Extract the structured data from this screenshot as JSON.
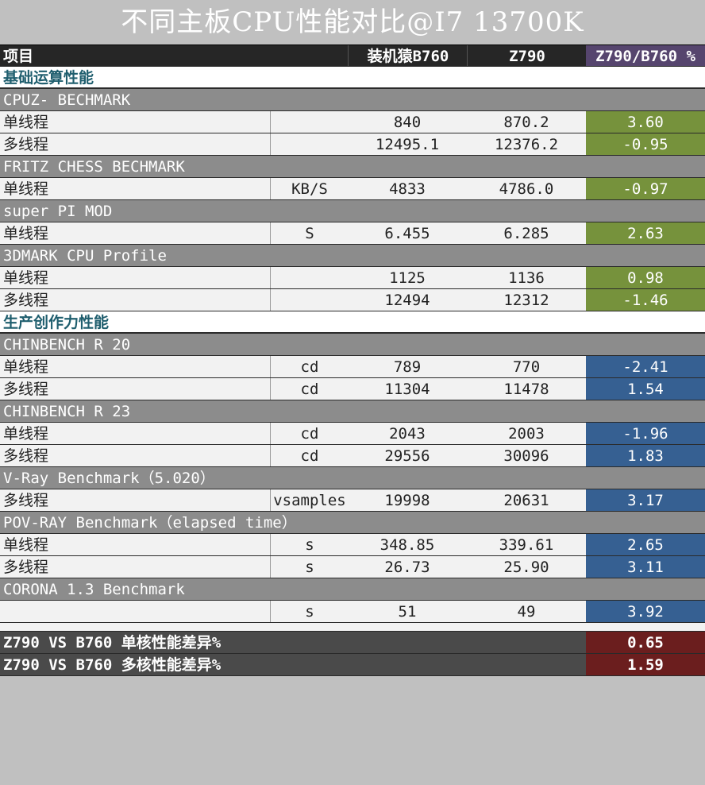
{
  "title": "不同主板CPU性能对比@I7 13700K",
  "header": {
    "label": "项目",
    "col_b760": "装机猿B760",
    "col_z790": "Z790",
    "col_pct": "Z790/B760 %"
  },
  "colors": {
    "header_bg": "#262626",
    "group_bg": "#8c8c8c",
    "pct_green": "#76923c",
    "pct_blue": "#366092",
    "pct_purple": "#56456e",
    "summary_pct": "#6b1e1e"
  },
  "sections": {
    "basic": {
      "title": "基础运算性能",
      "cpuz": {
        "name": "CPUZ- BECHMARK",
        "single": {
          "label": "单线程",
          "unit": "",
          "b760": "840",
          "z790": "870.2",
          "pct": "3.60"
        },
        "multi": {
          "label": "多线程",
          "unit": "",
          "b760": "12495.1",
          "z790": "12376.2",
          "pct": "-0.95"
        }
      },
      "fritz": {
        "name": "FRITZ CHESS BECHMARK",
        "single": {
          "label": "单线程",
          "unit": "KB/S",
          "b760": "4833",
          "z790": "4786.0",
          "pct": "-0.97"
        }
      },
      "superpi": {
        "name": "super PI MOD",
        "single": {
          "label": "单线程",
          "unit": "S",
          "b760": "6.455",
          "z790": "6.285",
          "pct": "2.63"
        }
      },
      "threedmark": {
        "name": "3DMARK CPU Profile",
        "single": {
          "label": "单线程",
          "unit": "",
          "b760": "1125",
          "z790": "1136",
          "pct": "0.98"
        },
        "multi": {
          "label": "多线程",
          "unit": "",
          "b760": "12494",
          "z790": "12312",
          "pct": "-1.46"
        }
      }
    },
    "productivity": {
      "title": "生产创作力性能",
      "cb20": {
        "name": "CHINBENCH R 20",
        "single": {
          "label": "单线程",
          "unit": "cd",
          "b760": "789",
          "z790": "770",
          "pct": "-2.41"
        },
        "multi": {
          "label": "多线程",
          "unit": "cd",
          "b760": "11304",
          "z790": "11478",
          "pct": "1.54"
        }
      },
      "cb23": {
        "name": "CHINBENCH R 23",
        "single": {
          "label": "单线程",
          "unit": "cd",
          "b760": "2043",
          "z790": "2003",
          "pct": "-1.96"
        },
        "multi": {
          "label": "多线程",
          "unit": "cd",
          "b760": "29556",
          "z790": "30096",
          "pct": "1.83"
        }
      },
      "vray": {
        "name": "V-Ray Benchmark（5.020）",
        "multi": {
          "label": "多线程",
          "unit": "vsamples",
          "b760": "19998",
          "z790": "20631",
          "pct": "3.17"
        }
      },
      "povray": {
        "name": "POV-RAY Benchmark（elapsed time）",
        "single": {
          "label": "单线程",
          "unit": "s",
          "b760": "348.85",
          "z790": "339.61",
          "pct": "2.65"
        },
        "multi": {
          "label": "多线程",
          "unit": "s",
          "b760": "26.73",
          "z790": "25.90",
          "pct": "3.11"
        }
      },
      "corona": {
        "name": "CORONA 1.3 Benchmark",
        "row": {
          "label": "",
          "unit": "s",
          "b760": "51",
          "z790": "49",
          "pct": "3.92"
        }
      }
    }
  },
  "summary": {
    "single": {
      "label": "Z790 VS B760 单核性能差异%",
      "pct": "0.65"
    },
    "multi": {
      "label": "Z790 VS B760 多核性能差异%",
      "pct": "1.59"
    }
  }
}
